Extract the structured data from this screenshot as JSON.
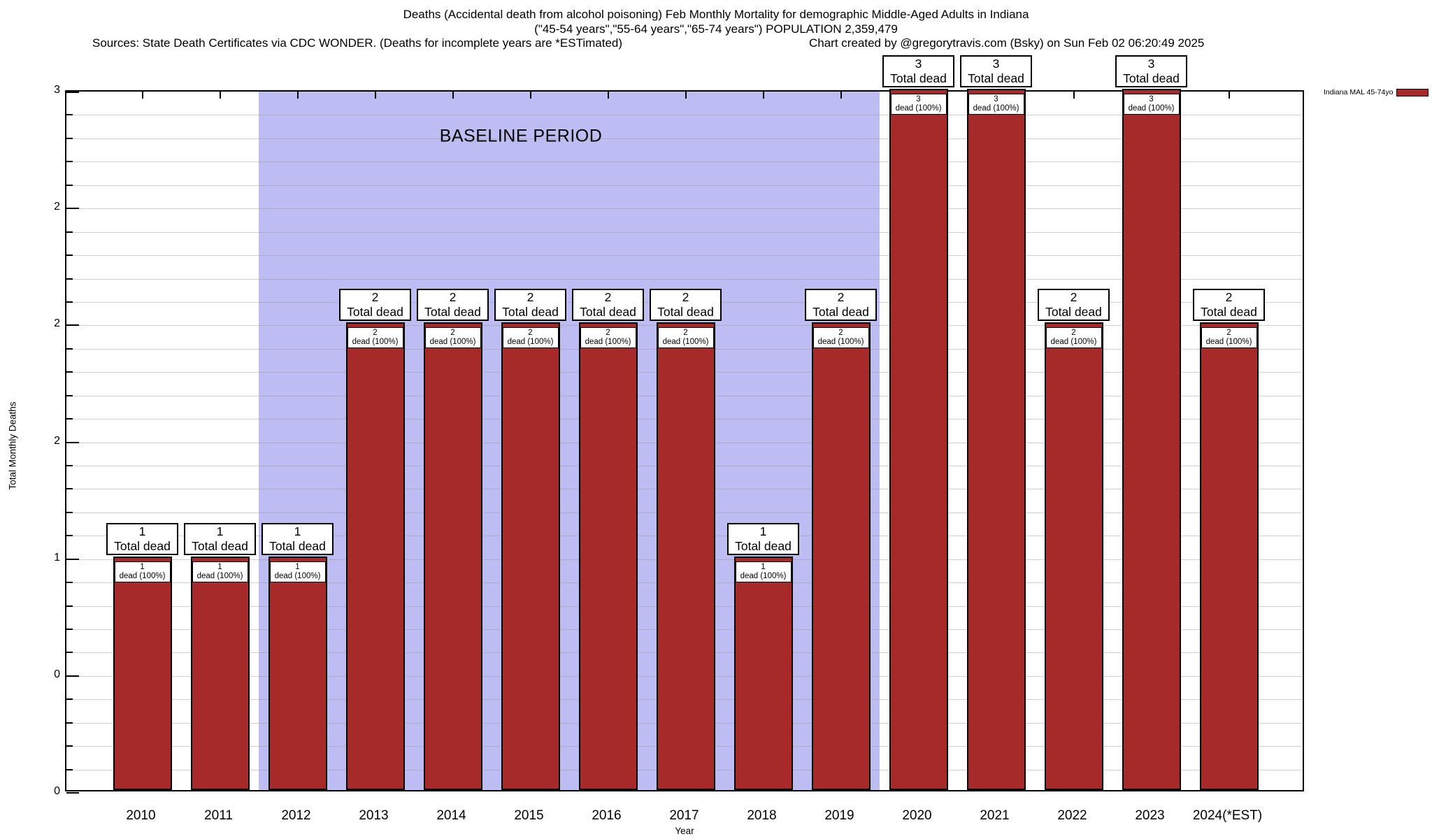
{
  "header": {
    "title_line1": "Deaths (Accidental death from alcohol poisoning) Feb Monthly Mortality for demographic Middle-Aged Adults in Indiana",
    "title_line2": "(\"45-54 years\",\"55-64 years\",\"65-74 years\") POPULATION 2,359,479",
    "sources": "Sources: State Death Certificates via CDC WONDER. (Deaths for incomplete years are *ESTimated)",
    "credit": "Chart created by @gregorytravis.com (Bsky) on Sun Feb 02 06:20:49 2025"
  },
  "legend": {
    "label": "Indiana MAL 45-74yo",
    "swatch_color": "#a62a2a"
  },
  "axes": {
    "y_title": "Total Monthly Deaths",
    "x_title": "Year",
    "y_tick_labels_top_to_bottom": [
      "3",
      "2",
      "2",
      "2",
      "1",
      "0",
      "0"
    ]
  },
  "baseline": {
    "label": "BASELINE PERIOD",
    "color": "#bdbdf4",
    "start_category": "2012",
    "end_category": "2019"
  },
  "chart_data": {
    "type": "bar",
    "title": "Deaths (Accidental death from alcohol poisoning) Feb Monthly Mortality for demographic Middle-Aged Adults in Indiana",
    "subtitle": "(\"45-54 years\",\"55-64 years\",\"65-74 years\") POPULATION 2,359,479",
    "xlabel": "Year",
    "ylabel": "Total Monthly Deaths",
    "ylim": [
      0,
      3
    ],
    "y_major_step": 0.5,
    "y_minor_step": 0.1,
    "grid": true,
    "legend_position": "top-right-outside",
    "series_name": "Indiana MAL 45-74yo",
    "bar_color": "#a62a2a",
    "categories": [
      "2010",
      "2011",
      "2012",
      "2013",
      "2014",
      "2015",
      "2016",
      "2017",
      "2018",
      "2019",
      "2020",
      "2021",
      "2022",
      "2023",
      "2024(*EST)"
    ],
    "values": [
      1,
      1,
      1,
      2,
      2,
      2,
      2,
      2,
      1,
      2,
      3,
      3,
      2,
      3,
      2
    ],
    "bar_top_caption": "Total dead",
    "bar_inner_caption": "dead (100%)",
    "baseline_span": [
      "2012",
      "2019"
    ]
  }
}
